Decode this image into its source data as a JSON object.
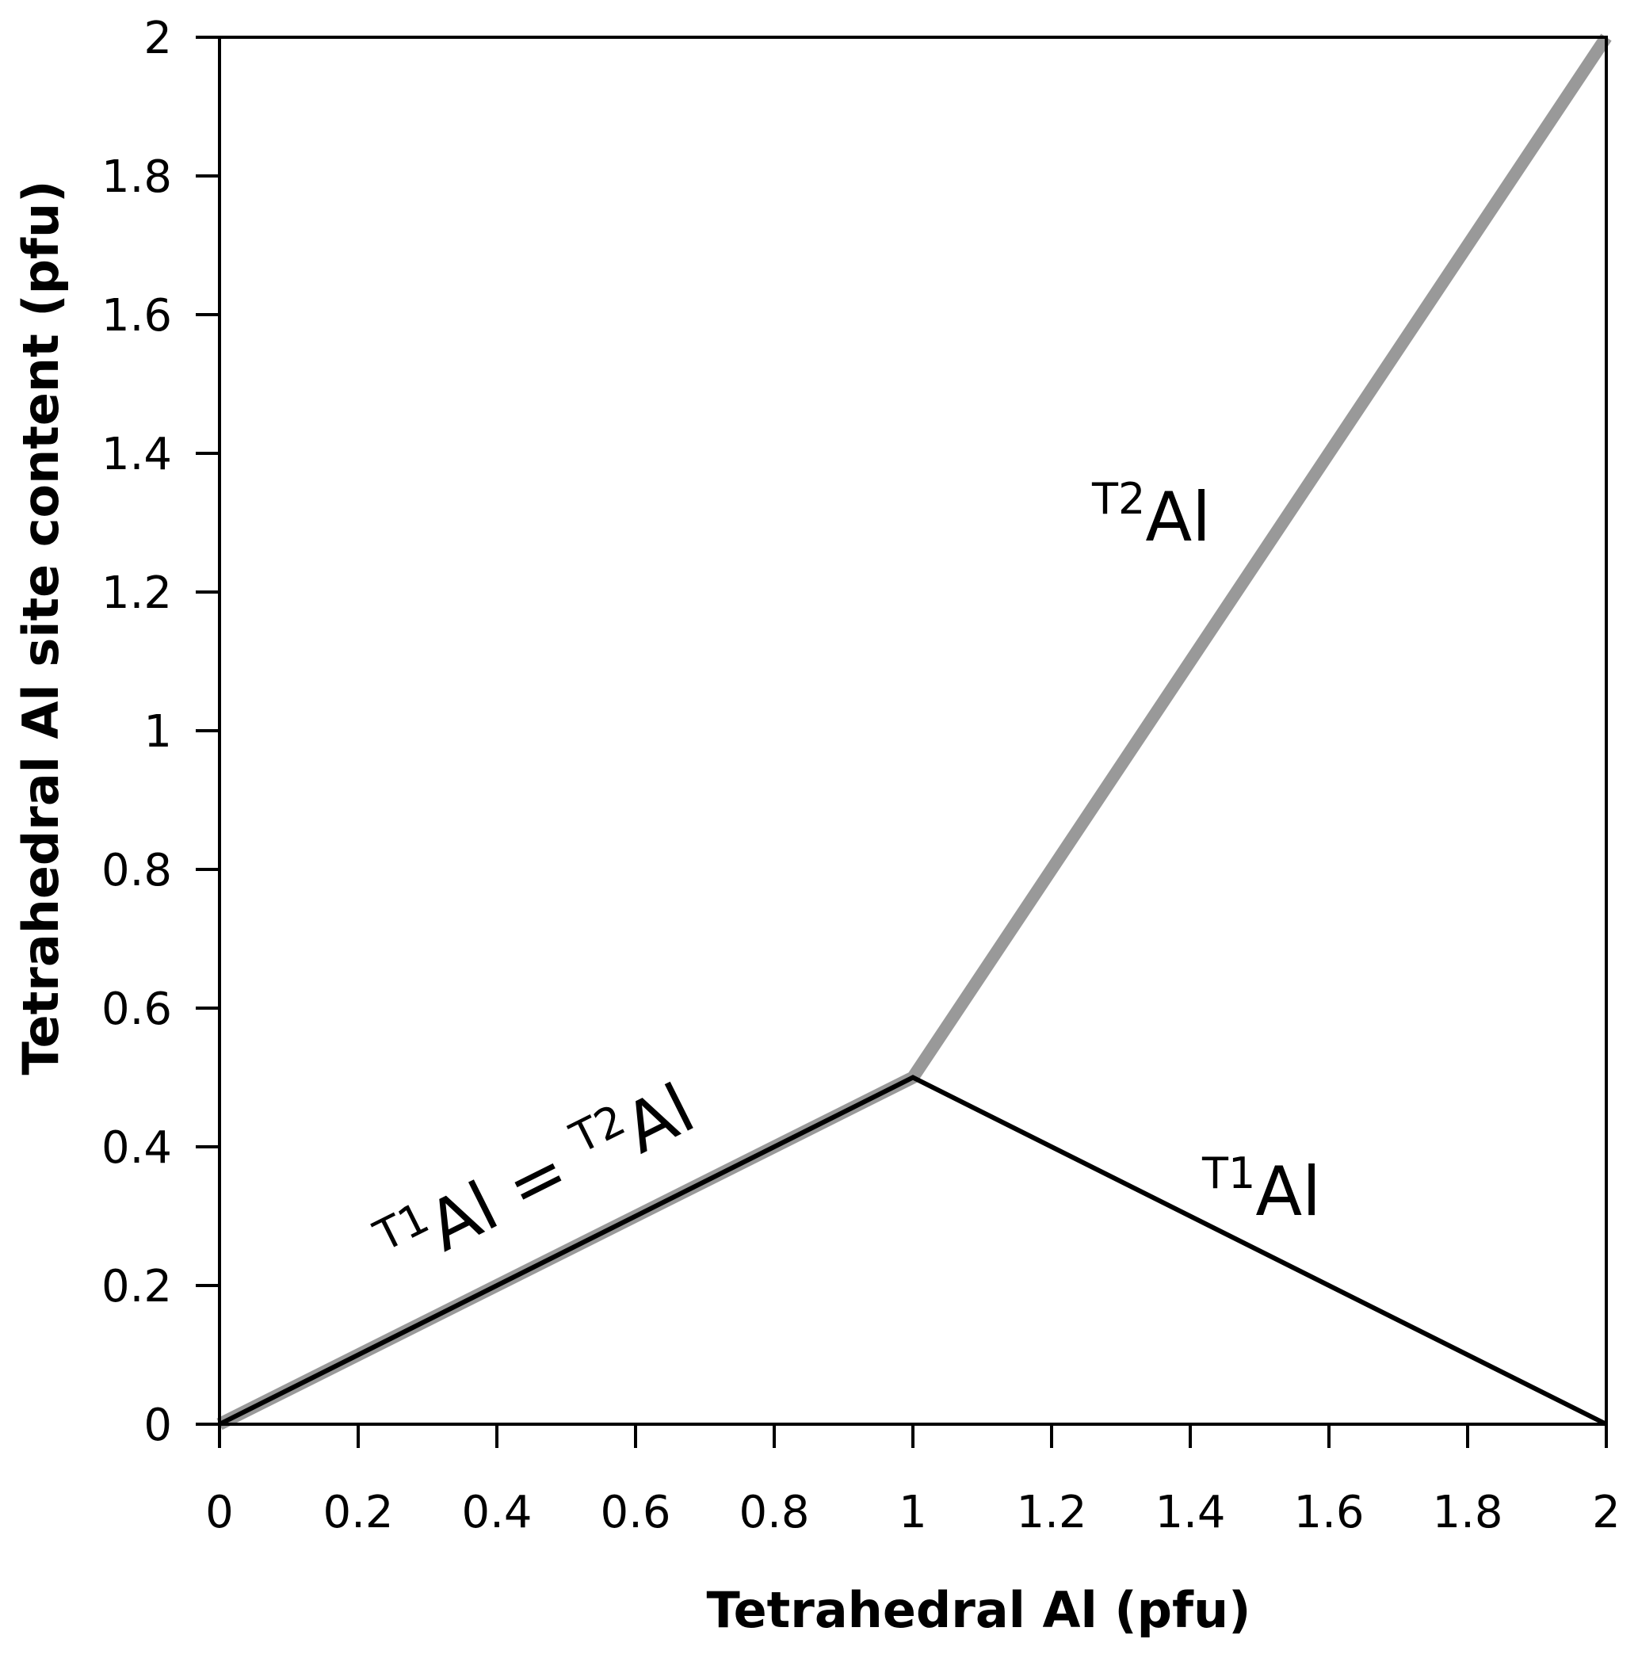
{
  "chart_data": {
    "type": "line",
    "xlabel": "Tetrahedral Al (pfu)",
    "ylabel": "Tetrahedral Al site content (pfu)",
    "xlim": [
      0,
      2
    ],
    "ylim": [
      0,
      2
    ],
    "x_ticks": [
      "0",
      "0.2",
      "0.4",
      "0.6",
      "0.8",
      "1",
      "1.2",
      "1.4",
      "1.6",
      "1.8",
      "2"
    ],
    "y_ticks": [
      "0",
      "0.2",
      "0.4",
      "0.6",
      "0.8",
      "1",
      "1.2",
      "1.4",
      "1.6",
      "1.8",
      "2"
    ],
    "grid": false,
    "series": [
      {
        "name": "T2Al",
        "color": "#999999",
        "x": [
          0,
          1,
          2
        ],
        "y": [
          0,
          0.5,
          2
        ]
      },
      {
        "name": "T1Al",
        "color": "#000000",
        "x": [
          0,
          1,
          2
        ],
        "y": [
          0,
          0.5,
          0
        ]
      }
    ],
    "annotations": [
      {
        "id": "t1-eq-t2",
        "parts": [
          {
            "text": "T1",
            "sup": true
          },
          {
            "text": "Al = ",
            "sup": false
          },
          {
            "text": "T2",
            "sup": true
          },
          {
            "text": "Al",
            "sup": false
          }
        ]
      },
      {
        "id": "t2",
        "parts": [
          {
            "text": "T2",
            "sup": true
          },
          {
            "text": "Al",
            "sup": false
          }
        ]
      },
      {
        "id": "t1",
        "parts": [
          {
            "text": "T1",
            "sup": true
          },
          {
            "text": "Al",
            "sup": false
          }
        ]
      }
    ]
  }
}
